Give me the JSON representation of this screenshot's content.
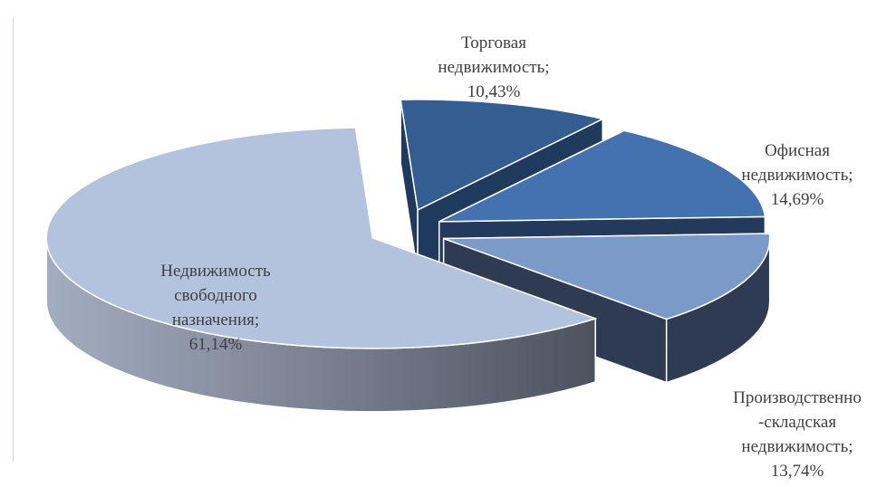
{
  "chart_data": {
    "type": "pie",
    "style": "3d-exploded",
    "title": "",
    "legend": "none",
    "slices": [
      {
        "name": "Торговая недвижимость",
        "value": 10.43,
        "label_lines": [
          "Торговая",
          "недвижимость;",
          "10,43%"
        ],
        "color": "#345E91",
        "side_color": "#1F3A5C"
      },
      {
        "name": "Офисная недвижимость",
        "value": 14.69,
        "label_lines": [
          "Офисная",
          "недвижимость;",
          "14,69%"
        ],
        "color": "#4472B0",
        "side_color": "#243A5C"
      },
      {
        "name": "Производственно-складская недвижимость",
        "value": 13.74,
        "label_lines": [
          "Производственно",
          "-складская",
          "недвижимость;",
          "13,74%"
        ],
        "color": "#7C9AC7",
        "side_color": "#2F3B52"
      },
      {
        "name": "Недвижимость свободного назначения",
        "value": 61.14,
        "label_lines": [
          "Недвижимость",
          "свободного",
          "назначения;",
          "61,14%"
        ],
        "color": "#B4C3DD",
        "side_color": "#6E7585"
      }
    ]
  }
}
